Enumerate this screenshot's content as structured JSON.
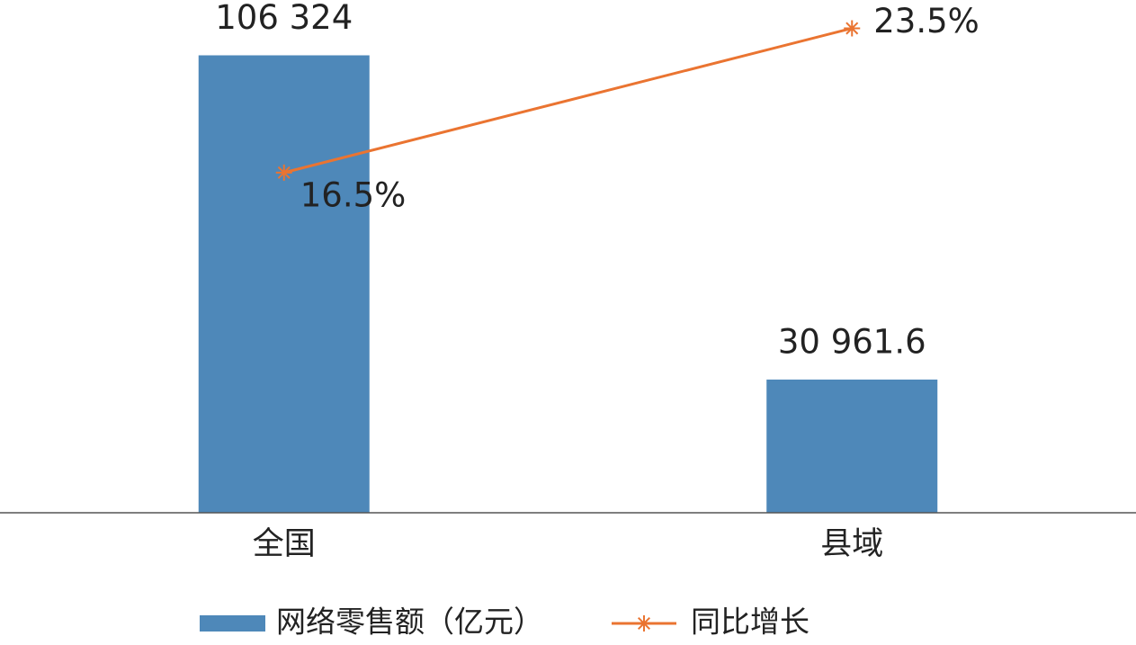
{
  "chart_data": {
    "type": "bar_line",
    "categories": [
      "全国",
      "县域"
    ],
    "series": [
      {
        "name": "网络零售额（亿元）",
        "type": "bar",
        "color": "#4e88b9",
        "values": [
          106324,
          30961.6
        ],
        "value_labels": [
          "106 324",
          "30 961.6"
        ]
      },
      {
        "name": "同比增长",
        "type": "line",
        "axis": "y2",
        "color": "#ea7431",
        "values": [
          16.5,
          23.5
        ],
        "value_labels": [
          "16.5%",
          "23.5%"
        ]
      }
    ],
    "ylim": [
      0,
      115000
    ],
    "y2lim": [
      0,
      24
    ],
    "legend": "bottom"
  }
}
